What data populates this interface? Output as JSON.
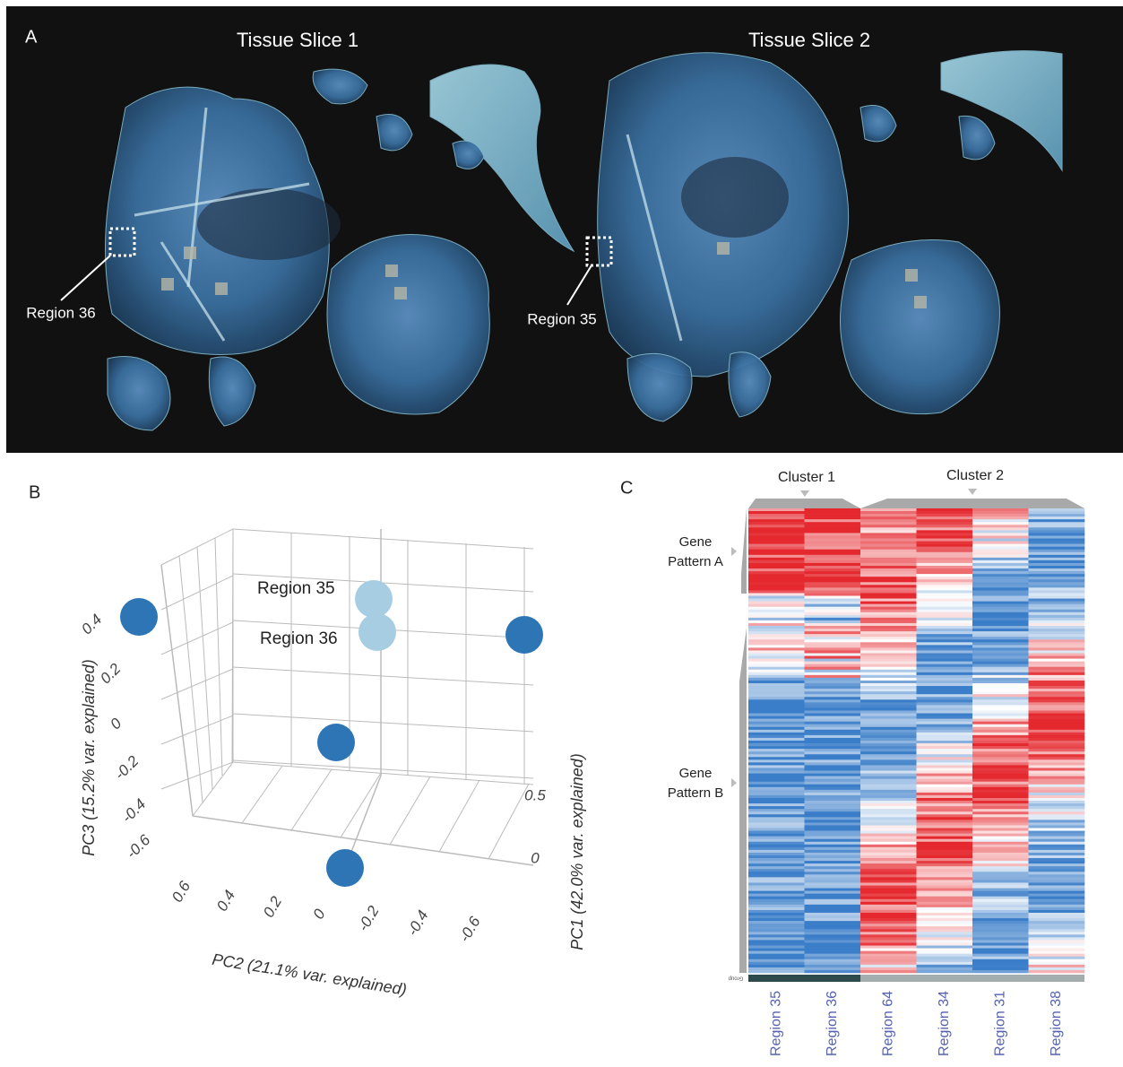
{
  "panel_a": {
    "label": "A",
    "slice_titles": [
      "Tissue Slice 1",
      "Tissue Slice 2"
    ],
    "callouts": [
      "Region 36",
      "Region 35"
    ]
  },
  "panel_b": {
    "label": "B",
    "point_labels": [
      "Region 35",
      "Region 36"
    ],
    "pc1": {
      "title": "PC1 (42.0% var. explained)",
      "ticks": [
        "0.5",
        "0"
      ]
    },
    "pc2": {
      "title": "PC2 (21.1% var. explained)",
      "ticks": [
        "0.6",
        "0.4",
        "0.2",
        "0",
        "-0.2",
        "-0.4",
        "-0.6"
      ]
    },
    "pc3": {
      "title": "PC3 (15.2% var. explained)",
      "ticks": [
        "0.4",
        "0.2",
        "0",
        "-0.2",
        "-0.4",
        "-0.6"
      ]
    }
  },
  "panel_c": {
    "label": "C",
    "clusters": [
      "Cluster 1",
      "Cluster 2"
    ],
    "gene_patterns": [
      [
        "Gene",
        "Pattern A"
      ],
      [
        "Gene",
        "Pattern B"
      ]
    ],
    "group_label": "Group",
    "columns": [
      "Region 35",
      "Region 36",
      "Region 64",
      "Region 34",
      "Region 31",
      "Region 38"
    ]
  }
}
